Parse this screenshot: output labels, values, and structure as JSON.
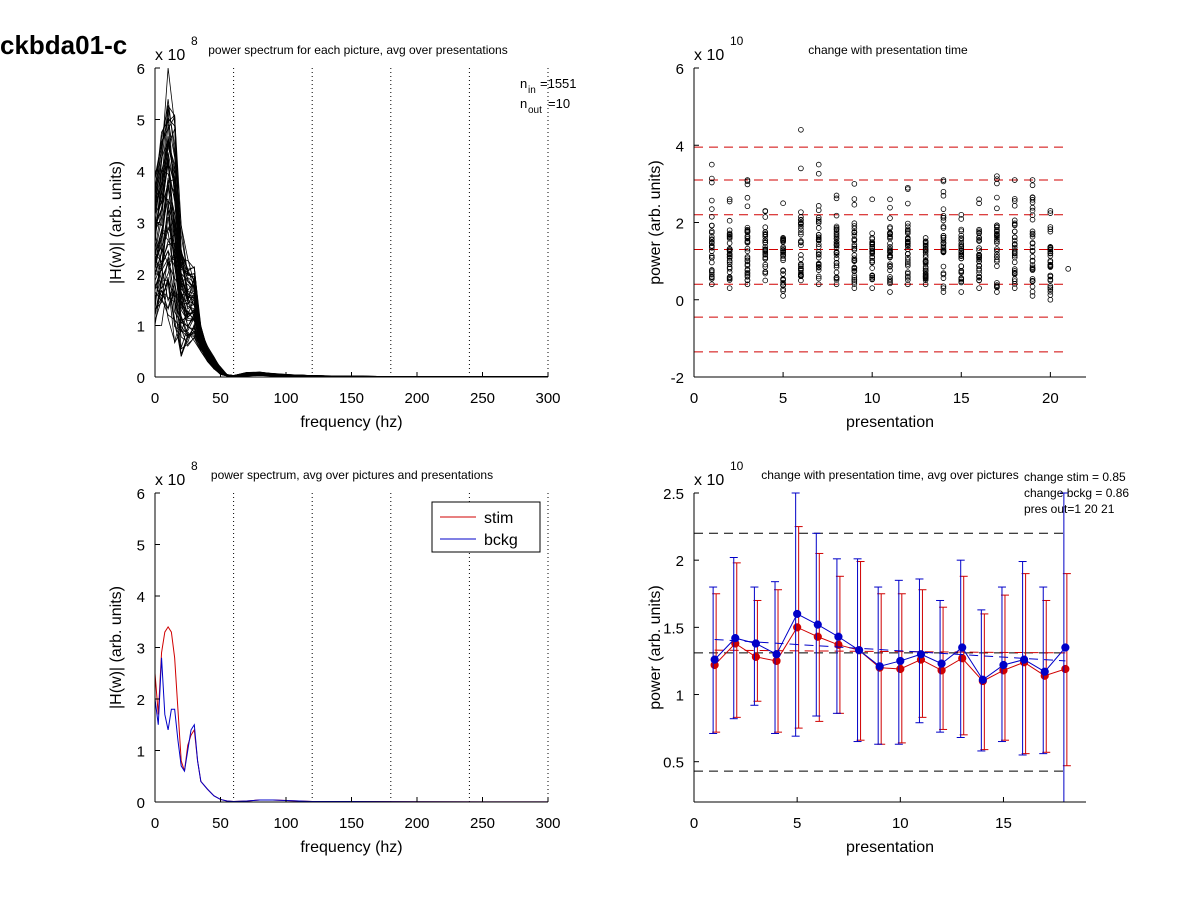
{
  "figure": {
    "title": "ckbda01-c"
  },
  "chart_data": [
    {
      "id": "tl",
      "type": "line",
      "title": "power spectrum for each picture, avg over presentations",
      "xlabel": "frequency (hz)",
      "ylabel": "|H(w)| (arb. units)",
      "xlim": [
        0,
        300
      ],
      "ylim": [
        0,
        6
      ],
      "xticks": [
        "0",
        "50",
        "100",
        "150",
        "200",
        "250",
        "300"
      ],
      "yticks": [
        "0",
        "1",
        "2",
        "3",
        "4",
        "5",
        "6"
      ],
      "y_exponent": "x 10^8",
      "y_exponent_base": "x 10",
      "y_exponent_power": "8",
      "vlines": [
        60,
        120,
        180,
        240,
        300
      ],
      "annotations": {
        "n_in_label": "n",
        "n_in_sub": "in",
        "n_in_value": "=1551",
        "n_out_label": "n",
        "n_out_sub": "out",
        "n_out_value": "=10"
      },
      "freqs": [
        0,
        5,
        10,
        15,
        20,
        25,
        30,
        35,
        40,
        45,
        50,
        55,
        60,
        70,
        80,
        90,
        100,
        110,
        120,
        130,
        140,
        150,
        160,
        170,
        180,
        200,
        220,
        240,
        260,
        280,
        300
      ],
      "envelope_lower": [
        1.0,
        1.0,
        0.9,
        0.5,
        0.4,
        0.6,
        0.7,
        0.5,
        0.3,
        0.15,
        0.05,
        0.02,
        0.01,
        0.02,
        0.03,
        0.02,
        0.02,
        0.015,
        0.01,
        0.01,
        0.008,
        0.008,
        0.006,
        0.006,
        0.005,
        0.004,
        0.004,
        0.003,
        0.003,
        0.003,
        0.003
      ],
      "envelope_upper": [
        4.0,
        4.8,
        6.0,
        5.2,
        3.0,
        2.3,
        2.2,
        1.0,
        0.6,
        0.4,
        0.2,
        0.05,
        0.03,
        0.09,
        0.1,
        0.07,
        0.05,
        0.04,
        0.03,
        0.025,
        0.02,
        0.02,
        0.015,
        0.012,
        0.01,
        0.008,
        0.007,
        0.006,
        0.005,
        0.005,
        0.004
      ]
    },
    {
      "id": "tr",
      "type": "scatter",
      "title": "change with presentation time",
      "xlabel": "presentation",
      "ylabel": "power (arb. units)",
      "xlim": [
        0,
        22
      ],
      "ylim": [
        -2,
        6
      ],
      "xticks": [
        "0",
        "5",
        "10",
        "15",
        "20"
      ],
      "yticks": [
        "-2",
        "0",
        "2",
        "4",
        "6"
      ],
      "y_exponent": "x 10^10",
      "y_exponent_base": "x 10",
      "y_exponent_power": "10",
      "hlines": [
        -1.35,
        -0.45,
        0.4,
        1.3,
        2.2,
        3.1,
        3.95
      ],
      "columns": [
        {
          "x": 1,
          "min": 0.4,
          "max": 3.5,
          "outliers": []
        },
        {
          "x": 2,
          "min": 0.3,
          "max": 2.6,
          "outliers": []
        },
        {
          "x": 3,
          "min": 0.4,
          "max": 3.1,
          "outliers": []
        },
        {
          "x": 4,
          "min": 0.5,
          "max": 2.3,
          "outliers": []
        },
        {
          "x": 5,
          "min": 0.1,
          "max": 2.5,
          "outliers": []
        },
        {
          "x": 6,
          "min": 0.5,
          "max": 3.4,
          "outliers": [
            4.4
          ]
        },
        {
          "x": 7,
          "min": 0.4,
          "max": 3.5,
          "outliers": []
        },
        {
          "x": 8,
          "min": 0.4,
          "max": 2.7,
          "outliers": []
        },
        {
          "x": 9,
          "min": 0.3,
          "max": 3.0,
          "outliers": []
        },
        {
          "x": 10,
          "min": 0.3,
          "max": 2.6,
          "outliers": []
        },
        {
          "x": 11,
          "min": 0.2,
          "max": 2.6,
          "outliers": []
        },
        {
          "x": 12,
          "min": 0.4,
          "max": 2.9,
          "outliers": []
        },
        {
          "x": 13,
          "min": 0.4,
          "max": 1.6,
          "outliers": []
        },
        {
          "x": 14,
          "min": 0.2,
          "max": 3.1,
          "outliers": []
        },
        {
          "x": 15,
          "min": 0.2,
          "max": 2.2,
          "outliers": []
        },
        {
          "x": 16,
          "min": 0.3,
          "max": 2.6,
          "outliers": []
        },
        {
          "x": 17,
          "min": 0.2,
          "max": 3.2,
          "outliers": []
        },
        {
          "x": 18,
          "min": 0.3,
          "max": 3.1,
          "outliers": []
        },
        {
          "x": 19,
          "min": 0.1,
          "max": 3.1,
          "outliers": []
        },
        {
          "x": 20,
          "min": 0.0,
          "max": 2.3,
          "outliers": []
        },
        {
          "x": 21,
          "min": 0.8,
          "max": 0.8,
          "outliers": []
        }
      ]
    },
    {
      "id": "bl",
      "type": "line",
      "title": "power spectrum, avg over pictures and presentations",
      "xlabel": "frequency (hz)",
      "ylabel": "|H(w)| (arb. units)",
      "xlim": [
        0,
        300
      ],
      "ylim": [
        0,
        6
      ],
      "xticks": [
        "0",
        "50",
        "100",
        "150",
        "200",
        "250",
        "300"
      ],
      "yticks": [
        "0",
        "1",
        "2",
        "3",
        "4",
        "5",
        "6"
      ],
      "y_exponent": "x 10^8",
      "y_exponent_base": "x 10",
      "y_exponent_power": "8",
      "vlines": [
        60,
        120,
        180,
        240,
        300
      ],
      "legend": {
        "placement": "top-right"
      },
      "x": [
        0,
        2.5,
        5,
        7.5,
        10,
        12.5,
        15,
        17.5,
        20,
        22.5,
        25,
        27.5,
        30,
        32.5,
        35,
        40,
        45,
        50,
        55,
        60,
        70,
        80,
        90,
        100,
        110,
        120,
        150,
        200,
        250,
        300
      ],
      "series": [
        {
          "name": "stim",
          "color": "#d00000",
          "values": [
            2.5,
            1.7,
            2.9,
            3.3,
            3.4,
            3.3,
            2.8,
            1.8,
            0.8,
            0.6,
            1.1,
            1.3,
            1.4,
            0.8,
            0.4,
            0.25,
            0.12,
            0.05,
            0.02,
            0.01,
            0.02,
            0.04,
            0.04,
            0.03,
            0.02,
            0.01,
            0.01,
            0.005,
            0.003,
            0.002
          ]
        },
        {
          "name": "bckg",
          "color": "#0000c8",
          "values": [
            2.0,
            1.5,
            2.8,
            1.7,
            1.4,
            1.8,
            1.8,
            1.2,
            0.7,
            0.6,
            1.0,
            1.4,
            1.5,
            0.8,
            0.4,
            0.25,
            0.12,
            0.05,
            0.02,
            0.01,
            0.02,
            0.04,
            0.04,
            0.03,
            0.02,
            0.01,
            0.01,
            0.005,
            0.003,
            0.002
          ]
        }
      ]
    },
    {
      "id": "br",
      "type": "line",
      "title": "change with presentation time, avg over pictures",
      "xlabel": "presentation",
      "ylabel": "power (arb. units)",
      "xlim": [
        0,
        19
      ],
      "ylim": [
        0.2,
        2.5
      ],
      "xticks": [
        "0",
        "5",
        "10",
        "15"
      ],
      "yticks": [
        "0.5",
        "1",
        "1.5",
        "2",
        "2.5"
      ],
      "y_exponent": "x 10^10",
      "y_exponent_base": "x 10",
      "y_exponent_power": "10",
      "hlines": [
        0.43,
        1.31,
        2.2
      ],
      "annotations": [
        "change stim = 0.85",
        "change bckg = 0.86",
        "pres out=1 20 21"
      ],
      "x": [
        1,
        2,
        3,
        4,
        5,
        6,
        7,
        8,
        9,
        10,
        11,
        12,
        13,
        14,
        15,
        16,
        17,
        18
      ],
      "series": [
        {
          "name": "stim",
          "color": "#d00000",
          "values": [
            1.22,
            1.38,
            1.28,
            1.25,
            1.5,
            1.43,
            1.37,
            1.33,
            1.2,
            1.19,
            1.26,
            1.18,
            1.27,
            1.1,
            1.18,
            1.24,
            1.14,
            1.19
          ],
          "err_low": [
            0.72,
            0.83,
            0.95,
            0.72,
            0.75,
            0.8,
            0.86,
            0.66,
            0.63,
            0.64,
            0.83,
            0.74,
            0.7,
            0.59,
            0.66,
            0.56,
            0.57,
            0.47
          ],
          "err_high": [
            1.75,
            1.98,
            1.7,
            1.78,
            2.25,
            2.05,
            1.88,
            1.99,
            1.75,
            1.75,
            1.78,
            1.65,
            1.88,
            1.6,
            1.74,
            1.9,
            1.7,
            1.9
          ],
          "trend": [
            1.33,
            1.31
          ]
        },
        {
          "name": "bckg",
          "color": "#0000c8",
          "values": [
            1.26,
            1.42,
            1.38,
            1.3,
            1.6,
            1.52,
            1.43,
            1.33,
            1.21,
            1.25,
            1.3,
            1.23,
            1.35,
            1.11,
            1.22,
            1.26,
            1.17,
            1.35
          ],
          "err_low": [
            0.71,
            0.82,
            0.92,
            0.71,
            0.69,
            0.84,
            0.86,
            0.65,
            0.63,
            0.63,
            0.79,
            0.72,
            0.68,
            0.58,
            0.65,
            0.55,
            0.56,
            0.2
          ],
          "err_high": [
            1.8,
            2.02,
            1.8,
            1.84,
            2.5,
            2.2,
            2.01,
            2.01,
            1.8,
            1.85,
            1.86,
            1.7,
            2.0,
            1.63,
            1.8,
            1.99,
            1.8,
            2.5
          ],
          "trend": [
            1.41,
            1.25
          ]
        }
      ]
    }
  ]
}
